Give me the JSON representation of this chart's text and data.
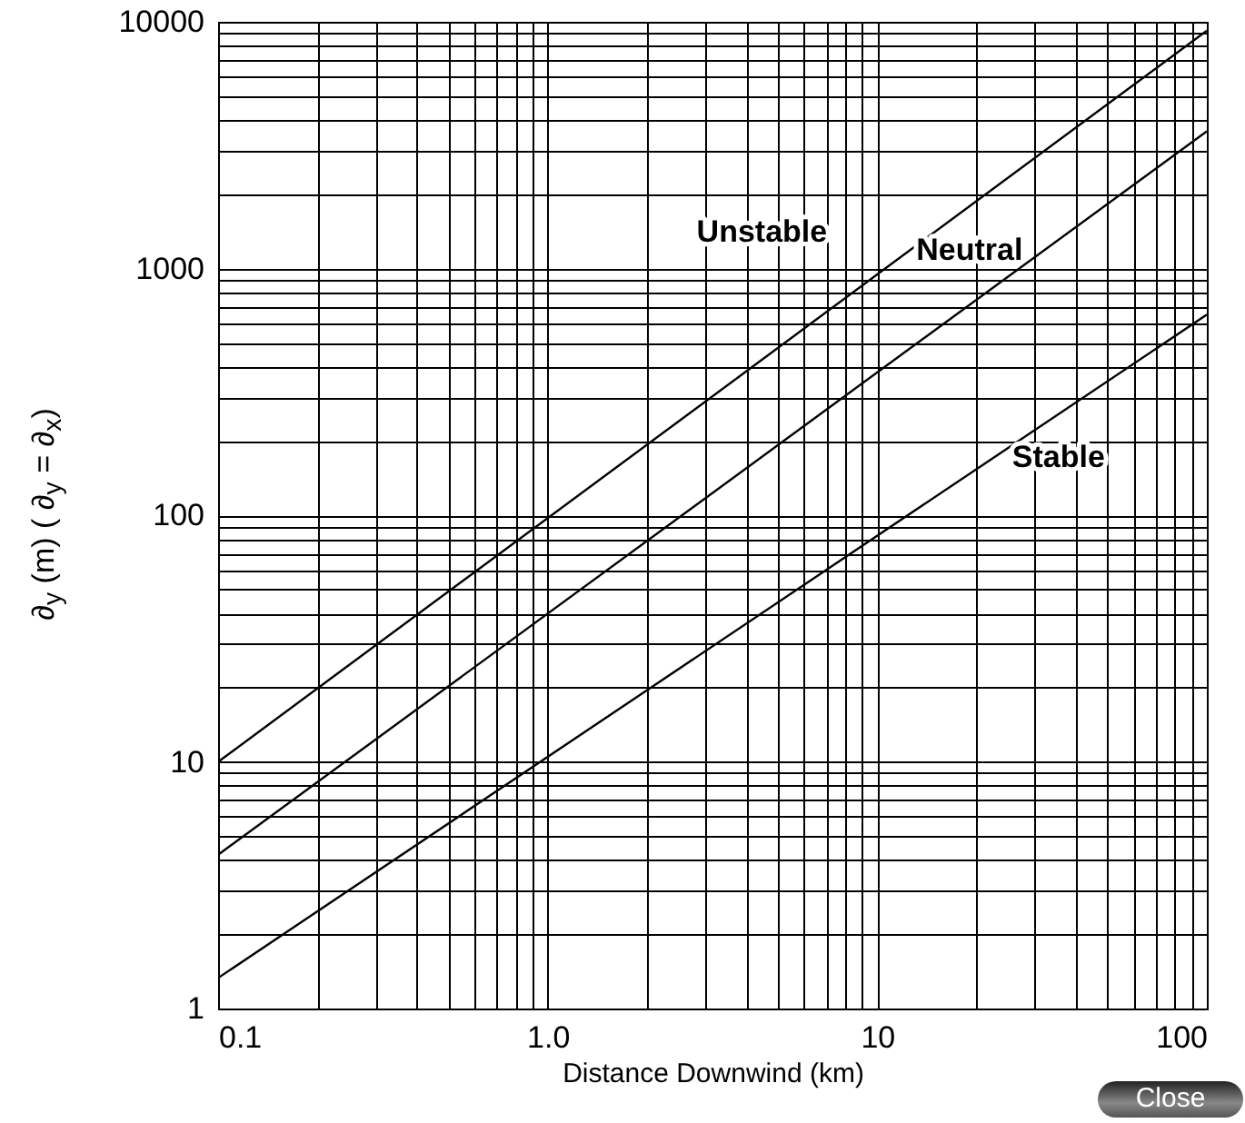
{
  "chart_data": {
    "type": "line",
    "xlabel": "Distance Downwind (km)",
    "ylabel": "∂$_{y}$ (m) ( ∂$_{y}$ = ∂$_{x}$)",
    "x": [
      0.1,
      100
    ],
    "series": [
      {
        "name": "Unstable",
        "color": "#000000",
        "values": [
          10,
          9200
        ]
      },
      {
        "name": "Neutral",
        "color": "#000000",
        "values": [
          4.2,
          3600
        ]
      },
      {
        "name": "Stable",
        "color": "#000000",
        "values": [
          1.33,
          650
        ]
      }
    ],
    "log": "xy",
    "grid": true,
    "marker": "none",
    "line_style": "solid",
    "xlim": [
      0.1,
      100
    ],
    "ylim": [
      1,
      10000
    ],
    "xticks": [
      0.1,
      {
        "value": 0.2,
        "label": null
      },
      {
        "value": 0.3,
        "label": null
      },
      {
        "value": 0.4,
        "label": null
      },
      {
        "value": 0.5,
        "label": null
      },
      {
        "value": 0.6,
        "label": null
      },
      {
        "value": 0.7,
        "label": null
      },
      {
        "value": 0.8,
        "label": null
      },
      {
        "value": 0.9,
        "label": null
      },
      {
        "value": 1,
        "label": "1.0"
      },
      {
        "value": 2,
        "label": null
      },
      {
        "value": 3,
        "label": null
      },
      {
        "value": 4,
        "label": null
      },
      {
        "value": 5,
        "label": null
      },
      {
        "value": 6,
        "label": null
      },
      {
        "value": 7,
        "label": null
      },
      {
        "value": 8,
        "label": null
      },
      {
        "value": 9,
        "label": null
      },
      10,
      {
        "value": 20,
        "label": null
      },
      {
        "value": 30,
        "label": null
      },
      {
        "value": 40,
        "label": null
      },
      {
        "value": 50,
        "label": null
      },
      {
        "value": 60,
        "label": null
      },
      {
        "value": 70,
        "label": null
      },
      {
        "value": 80,
        "label": null
      },
      {
        "value": 90,
        "label": null
      },
      100
    ],
    "yticks": [
      1,
      {
        "value": 2,
        "label": null
      },
      {
        "value": 3,
        "label": null
      },
      {
        "value": 4,
        "label": null
      },
      {
        "value": 5,
        "label": null
      },
      {
        "value": 6,
        "label": null
      },
      {
        "value": 7,
        "label": null
      },
      {
        "value": 8,
        "label": null
      },
      {
        "value": 9,
        "label": null
      },
      10,
      {
        "value": 20,
        "label": null
      },
      {
        "value": 30,
        "label": null
      },
      {
        "value": 40,
        "label": null
      },
      {
        "value": 50,
        "label": null
      },
      {
        "value": 60,
        "label": null
      },
      {
        "value": 70,
        "label": null
      },
      {
        "value": 80,
        "label": null
      },
      {
        "value": 90,
        "label": null
      },
      100,
      {
        "value": 200,
        "label": null
      },
      {
        "value": 300,
        "label": null
      },
      {
        "value": 400,
        "label": null
      },
      {
        "value": 500,
        "label": null
      },
      {
        "value": 600,
        "label": null
      },
      {
        "value": 700,
        "label": null
      },
      {
        "value": 800,
        "label": null
      },
      {
        "value": 900,
        "label": null
      },
      1000,
      {
        "value": 2000,
        "label": null
      },
      {
        "value": 3000,
        "label": null
      },
      {
        "value": 4000,
        "label": null
      },
      {
        "value": 5000,
        "label": null
      },
      {
        "value": 6000,
        "label": null
      },
      {
        "value": 7000,
        "label": null
      },
      {
        "value": 8000,
        "label": null
      },
      {
        "value": 9000,
        "label": null
      },
      10000
    ],
    "annotations": [
      "Close"
    ]
  }
}
